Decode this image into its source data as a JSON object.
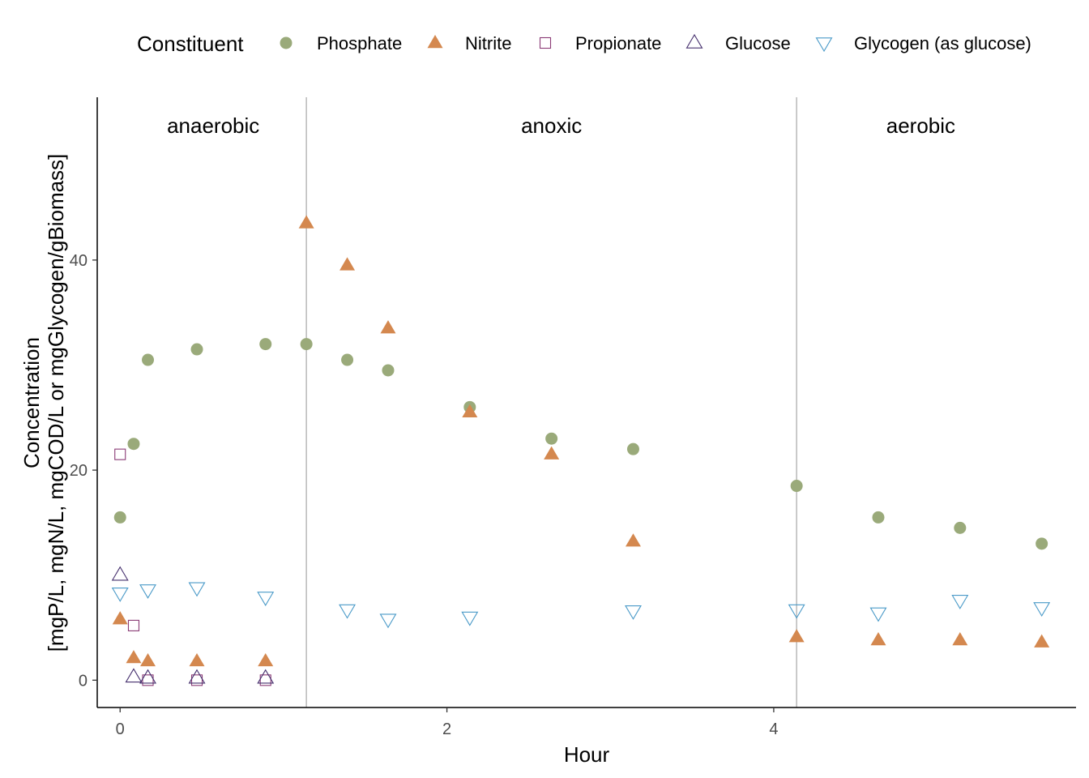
{
  "chart_data": {
    "type": "scatter",
    "xlabel": "Hour",
    "ylabel_line1": "Concentration",
    "ylabel_line2": "[mgP/L, mgN/L, mgCOD/L or mgGlycogen/gBiomass]",
    "xlim": [
      -0.14,
      5.85
    ],
    "ylim": [
      -2.6,
      55.5
    ],
    "x_ticks": [
      0,
      2,
      4
    ],
    "y_ticks": [
      0,
      20,
      40
    ],
    "grid": false,
    "legend": {
      "title": "Constituent",
      "position": "top"
    },
    "phase_boundaries": [
      1.14,
      4.14
    ],
    "phases": [
      {
        "label": "anaerobic",
        "x": 0.57
      },
      {
        "label": "anoxic",
        "x": 2.64
      },
      {
        "label": "aerobic",
        "x": 4.9
      }
    ],
    "series": [
      {
        "name": "Phosphate",
        "shape": "circle",
        "filled": true,
        "color": "#9aaa7a",
        "points": [
          [
            0,
            15.5
          ],
          [
            0.083,
            22.5
          ],
          [
            0.17,
            30.5
          ],
          [
            0.47,
            31.5
          ],
          [
            0.89,
            32
          ],
          [
            1.14,
            32
          ],
          [
            1.39,
            30.5
          ],
          [
            1.64,
            29.5
          ],
          [
            2.14,
            26
          ],
          [
            2.64,
            23
          ],
          [
            3.14,
            22
          ],
          [
            4.14,
            18.5
          ],
          [
            4.64,
            15.5
          ],
          [
            5.14,
            14.5
          ],
          [
            5.64,
            13
          ]
        ]
      },
      {
        "name": "Nitrite",
        "shape": "triangle",
        "filled": true,
        "color": "#d4884f",
        "points": [
          [
            0,
            5.8
          ],
          [
            0.083,
            2.1
          ],
          [
            0.17,
            1.8
          ],
          [
            0.47,
            1.8
          ],
          [
            0.89,
            1.8
          ],
          [
            1.14,
            43.5
          ],
          [
            1.39,
            39.5
          ],
          [
            1.64,
            33.5
          ],
          [
            2.14,
            25.5
          ],
          [
            2.64,
            21.5
          ],
          [
            3.14,
            13.2
          ],
          [
            4.14,
            4.1
          ],
          [
            4.64,
            3.8
          ],
          [
            5.14,
            3.8
          ],
          [
            5.64,
            3.6
          ]
        ]
      },
      {
        "name": "Propionate",
        "shape": "square",
        "filled": false,
        "color": "#8a3a75",
        "points": [
          [
            0,
            21.5
          ],
          [
            0.083,
            5.2
          ],
          [
            0.17,
            0
          ],
          [
            0.47,
            0
          ],
          [
            0.89,
            0
          ]
        ]
      },
      {
        "name": "Glucose",
        "shape": "triangle",
        "filled": false,
        "color": "#46306e",
        "points": [
          [
            0,
            10
          ],
          [
            0.083,
            0.3
          ],
          [
            0.17,
            0.2
          ],
          [
            0.47,
            0.2
          ],
          [
            0.89,
            0.2
          ]
        ]
      },
      {
        "name": "Glycogen (as glucose)",
        "shape": "triangle-down",
        "filled": false,
        "color": "#4a9ac8",
        "points": [
          [
            0,
            8.3
          ],
          [
            0.17,
            8.6
          ],
          [
            0.47,
            8.8
          ],
          [
            0.89,
            7.9
          ],
          [
            1.39,
            6.7
          ],
          [
            1.64,
            5.8
          ],
          [
            2.14,
            6.0
          ],
          [
            3.14,
            6.6
          ],
          [
            4.14,
            6.7
          ],
          [
            4.64,
            6.4
          ],
          [
            5.14,
            7.6
          ],
          [
            5.64,
            6.9
          ]
        ]
      }
    ]
  }
}
